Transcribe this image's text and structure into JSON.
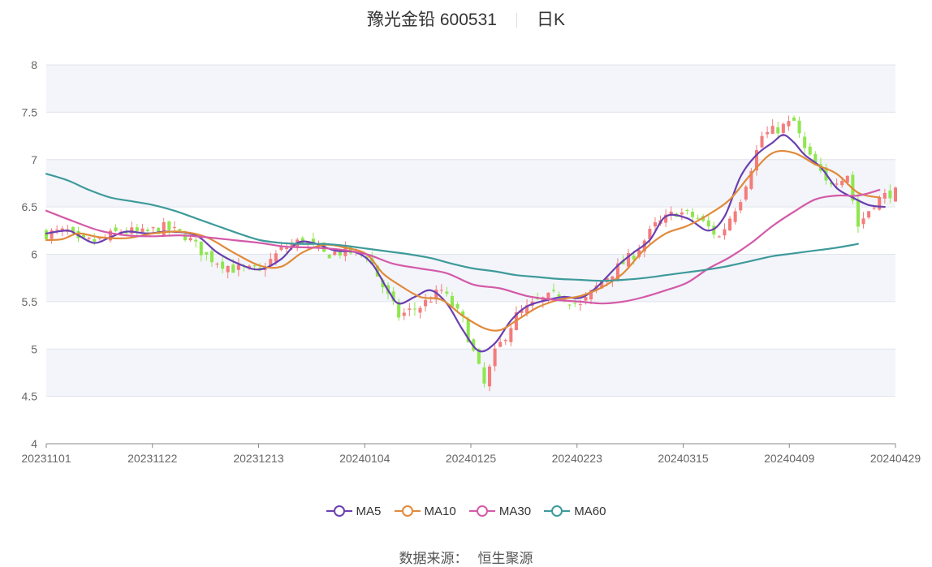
{
  "header": {
    "stock_name": "豫光金铅 600531",
    "period": "日K"
  },
  "legend": [
    {
      "label": "MA5",
      "color": "#6a3fb0"
    },
    {
      "label": "MA10",
      "color": "#e08a3a"
    },
    {
      "label": "MA30",
      "color": "#d45aa8"
    },
    {
      "label": "MA60",
      "color": "#3e9a9a"
    }
  ],
  "footer": {
    "source_label": "数据来源：",
    "source_value": "恒生聚源"
  },
  "colors": {
    "up": "#f47c7c",
    "down": "#8fe64f",
    "band": "#f3f5fa",
    "grid": "#e0e4ec"
  },
  "chart_data": {
    "type": "candlestick",
    "ylim": [
      4,
      8
    ],
    "yticks": [
      "4",
      "4.5",
      "5",
      "5.5",
      "6",
      "6.5",
      "7",
      "7.5",
      "8"
    ],
    "xticks": [
      "20231101",
      "20231122",
      "20231213",
      "20240104",
      "20240125",
      "20240223",
      "20240315",
      "20240409",
      "20240429"
    ],
    "close_track": [
      [
        0,
        6.22
      ],
      [
        4,
        6.24
      ],
      [
        6,
        6.12
      ],
      [
        10,
        6.15
      ],
      [
        14,
        6.25
      ],
      [
        18,
        6.22
      ],
      [
        22,
        6.28
      ],
      [
        26,
        6.2
      ],
      [
        30,
        5.98
      ],
      [
        35,
        5.85
      ],
      [
        40,
        5.82
      ],
      [
        44,
        6.05
      ],
      [
        48,
        6.15
      ],
      [
        52,
        6.0
      ],
      [
        56,
        6.03
      ],
      [
        60,
        6.0
      ],
      [
        64,
        5.55
      ],
      [
        66,
        5.35
      ],
      [
        70,
        5.45
      ],
      [
        74,
        5.62
      ],
      [
        78,
        5.3
      ],
      [
        82,
        4.62
      ],
      [
        84,
        4.95
      ],
      [
        88,
        5.35
      ],
      [
        92,
        5.5
      ],
      [
        96,
        5.58
      ],
      [
        100,
        5.45
      ],
      [
        104,
        5.72
      ],
      [
        110,
        6.0
      ],
      [
        114,
        6.3
      ],
      [
        118,
        6.45
      ],
      [
        122,
        6.38
      ],
      [
        126,
        6.18
      ],
      [
        130,
        6.6
      ],
      [
        134,
        7.25
      ],
      [
        136,
        7.3
      ],
      [
        140,
        7.4
      ],
      [
        142,
        7.1
      ],
      [
        146,
        6.75
      ],
      [
        150,
        6.85
      ],
      [
        152,
        6.3
      ],
      [
        155,
        6.55
      ],
      [
        158,
        6.65
      ]
    ],
    "series": [
      {
        "name": "MA5",
        "values": [
          [
            0,
            6.22
          ],
          [
            4,
            6.25
          ],
          [
            6,
            6.2
          ],
          [
            9,
            6.12
          ],
          [
            12,
            6.18
          ],
          [
            15,
            6.24
          ],
          [
            19,
            6.22
          ],
          [
            23,
            6.24
          ],
          [
            28,
            6.2
          ],
          [
            32,
            6.02
          ],
          [
            36,
            5.9
          ],
          [
            40,
            5.84
          ],
          [
            44,
            5.95
          ],
          [
            47,
            6.12
          ],
          [
            50,
            6.12
          ],
          [
            54,
            6.04
          ],
          [
            58,
            6.02
          ],
          [
            61,
            5.9
          ],
          [
            64,
            5.62
          ],
          [
            66,
            5.48
          ],
          [
            69,
            5.55
          ],
          [
            72,
            5.62
          ],
          [
            75,
            5.48
          ],
          [
            78,
            5.2
          ],
          [
            81,
            4.98
          ],
          [
            84,
            5.06
          ],
          [
            87,
            5.3
          ],
          [
            90,
            5.45
          ],
          [
            94,
            5.52
          ],
          [
            97,
            5.55
          ],
          [
            100,
            5.54
          ],
          [
            103,
            5.65
          ],
          [
            107,
            5.88
          ],
          [
            110,
            6.02
          ],
          [
            113,
            6.15
          ],
          [
            116,
            6.4
          ],
          [
            120,
            6.38
          ],
          [
            124,
            6.25
          ],
          [
            127,
            6.4
          ],
          [
            130,
            6.82
          ],
          [
            133,
            7.05
          ],
          [
            136,
            7.18
          ],
          [
            138,
            7.26
          ],
          [
            140,
            7.18
          ],
          [
            142,
            7.05
          ],
          [
            145,
            6.92
          ],
          [
            148,
            6.7
          ],
          [
            151,
            6.6
          ],
          [
            154,
            6.52
          ],
          [
            157,
            6.5
          ]
        ]
      },
      {
        "name": "MA10",
        "values": [
          [
            0,
            6.15
          ],
          [
            3,
            6.16
          ],
          [
            6,
            6.22
          ],
          [
            10,
            6.18
          ],
          [
            15,
            6.17
          ],
          [
            20,
            6.22
          ],
          [
            25,
            6.24
          ],
          [
            30,
            6.18
          ],
          [
            35,
            6.02
          ],
          [
            40,
            5.88
          ],
          [
            44,
            5.87
          ],
          [
            48,
            6.02
          ],
          [
            52,
            6.1
          ],
          [
            56,
            6.07
          ],
          [
            60,
            6.0
          ],
          [
            63,
            5.8
          ],
          [
            66,
            5.68
          ],
          [
            70,
            5.55
          ],
          [
            74,
            5.52
          ],
          [
            78,
            5.35
          ],
          [
            82,
            5.22
          ],
          [
            85,
            5.2
          ],
          [
            88,
            5.3
          ],
          [
            92,
            5.44
          ],
          [
            96,
            5.52
          ],
          [
            100,
            5.56
          ],
          [
            104,
            5.65
          ],
          [
            108,
            5.8
          ],
          [
            112,
            6.05
          ],
          [
            116,
            6.22
          ],
          [
            120,
            6.3
          ],
          [
            124,
            6.42
          ],
          [
            128,
            6.58
          ],
          [
            132,
            6.85
          ],
          [
            136,
            7.07
          ],
          [
            140,
            7.07
          ],
          [
            144,
            6.95
          ],
          [
            148,
            6.85
          ],
          [
            152,
            6.65
          ],
          [
            156,
            6.6
          ]
        ]
      },
      {
        "name": "MA30",
        "values": [
          [
            0,
            6.46
          ],
          [
            5,
            6.35
          ],
          [
            10,
            6.25
          ],
          [
            15,
            6.2
          ],
          [
            20,
            6.19
          ],
          [
            25,
            6.2
          ],
          [
            30,
            6.18
          ],
          [
            35,
            6.15
          ],
          [
            40,
            6.12
          ],
          [
            45,
            6.08
          ],
          [
            50,
            6.07
          ],
          [
            55,
            6.05
          ],
          [
            60,
            6.0
          ],
          [
            65,
            5.9
          ],
          [
            70,
            5.85
          ],
          [
            75,
            5.8
          ],
          [
            80,
            5.68
          ],
          [
            85,
            5.64
          ],
          [
            90,
            5.56
          ],
          [
            95,
            5.52
          ],
          [
            100,
            5.5
          ],
          [
            104,
            5.48
          ],
          [
            108,
            5.5
          ],
          [
            112,
            5.55
          ],
          [
            116,
            5.62
          ],
          [
            120,
            5.7
          ],
          [
            124,
            5.85
          ],
          [
            128,
            5.97
          ],
          [
            132,
            6.12
          ],
          [
            136,
            6.3
          ],
          [
            140,
            6.45
          ],
          [
            144,
            6.58
          ],
          [
            148,
            6.62
          ],
          [
            152,
            6.62
          ],
          [
            156,
            6.68
          ]
        ]
      },
      {
        "name": "MA60",
        "values": [
          [
            0,
            6.85
          ],
          [
            4,
            6.78
          ],
          [
            8,
            6.68
          ],
          [
            12,
            6.6
          ],
          [
            16,
            6.56
          ],
          [
            20,
            6.52
          ],
          [
            24,
            6.46
          ],
          [
            28,
            6.38
          ],
          [
            32,
            6.3
          ],
          [
            36,
            6.22
          ],
          [
            40,
            6.15
          ],
          [
            44,
            6.12
          ],
          [
            48,
            6.11
          ],
          [
            52,
            6.11
          ],
          [
            56,
            6.09
          ],
          [
            60,
            6.06
          ],
          [
            64,
            6.03
          ],
          [
            68,
            6.0
          ],
          [
            72,
            5.96
          ],
          [
            76,
            5.9
          ],
          [
            80,
            5.85
          ],
          [
            84,
            5.82
          ],
          [
            88,
            5.78
          ],
          [
            92,
            5.76
          ],
          [
            96,
            5.74
          ],
          [
            100,
            5.73
          ],
          [
            104,
            5.72
          ],
          [
            108,
            5.73
          ],
          [
            112,
            5.75
          ],
          [
            116,
            5.78
          ],
          [
            120,
            5.81
          ],
          [
            124,
            5.84
          ],
          [
            128,
            5.88
          ],
          [
            132,
            5.93
          ],
          [
            136,
            5.98
          ],
          [
            140,
            6.01
          ],
          [
            144,
            6.04
          ],
          [
            148,
            6.07
          ],
          [
            152,
            6.11
          ]
        ]
      }
    ]
  }
}
